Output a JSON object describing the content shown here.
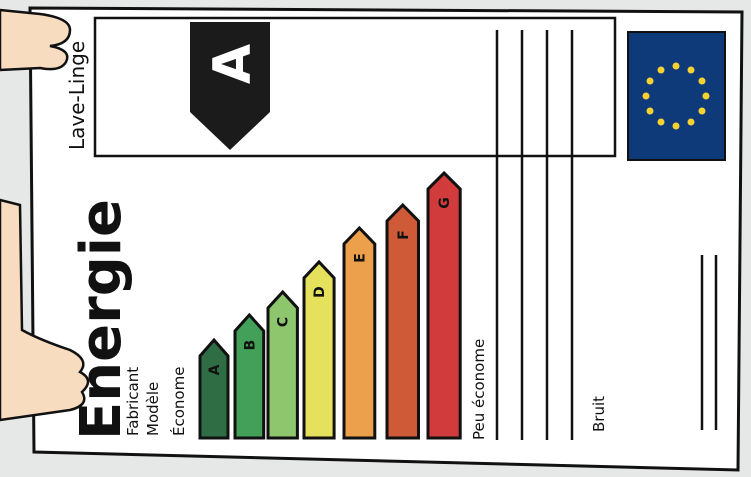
{
  "label": {
    "product": "Lave-Linge",
    "title": "Energie",
    "fields": [
      "Fabricant",
      "Modèle"
    ],
    "efficient": "Économe",
    "inefficient": "Peu économe",
    "rating": "A",
    "noise": "Bruit",
    "grades": [
      {
        "letter": "A",
        "color": "#2f6e45"
      },
      {
        "letter": "B",
        "color": "#43a058"
      },
      {
        "letter": "C",
        "color": "#8dc66d"
      },
      {
        "letter": "D",
        "color": "#e6e15c"
      },
      {
        "letter": "E",
        "color": "#eda04b"
      },
      {
        "letter": "F",
        "color": "#cf5a37"
      },
      {
        "letter": "G",
        "color": "#d23b3b"
      }
    ]
  }
}
